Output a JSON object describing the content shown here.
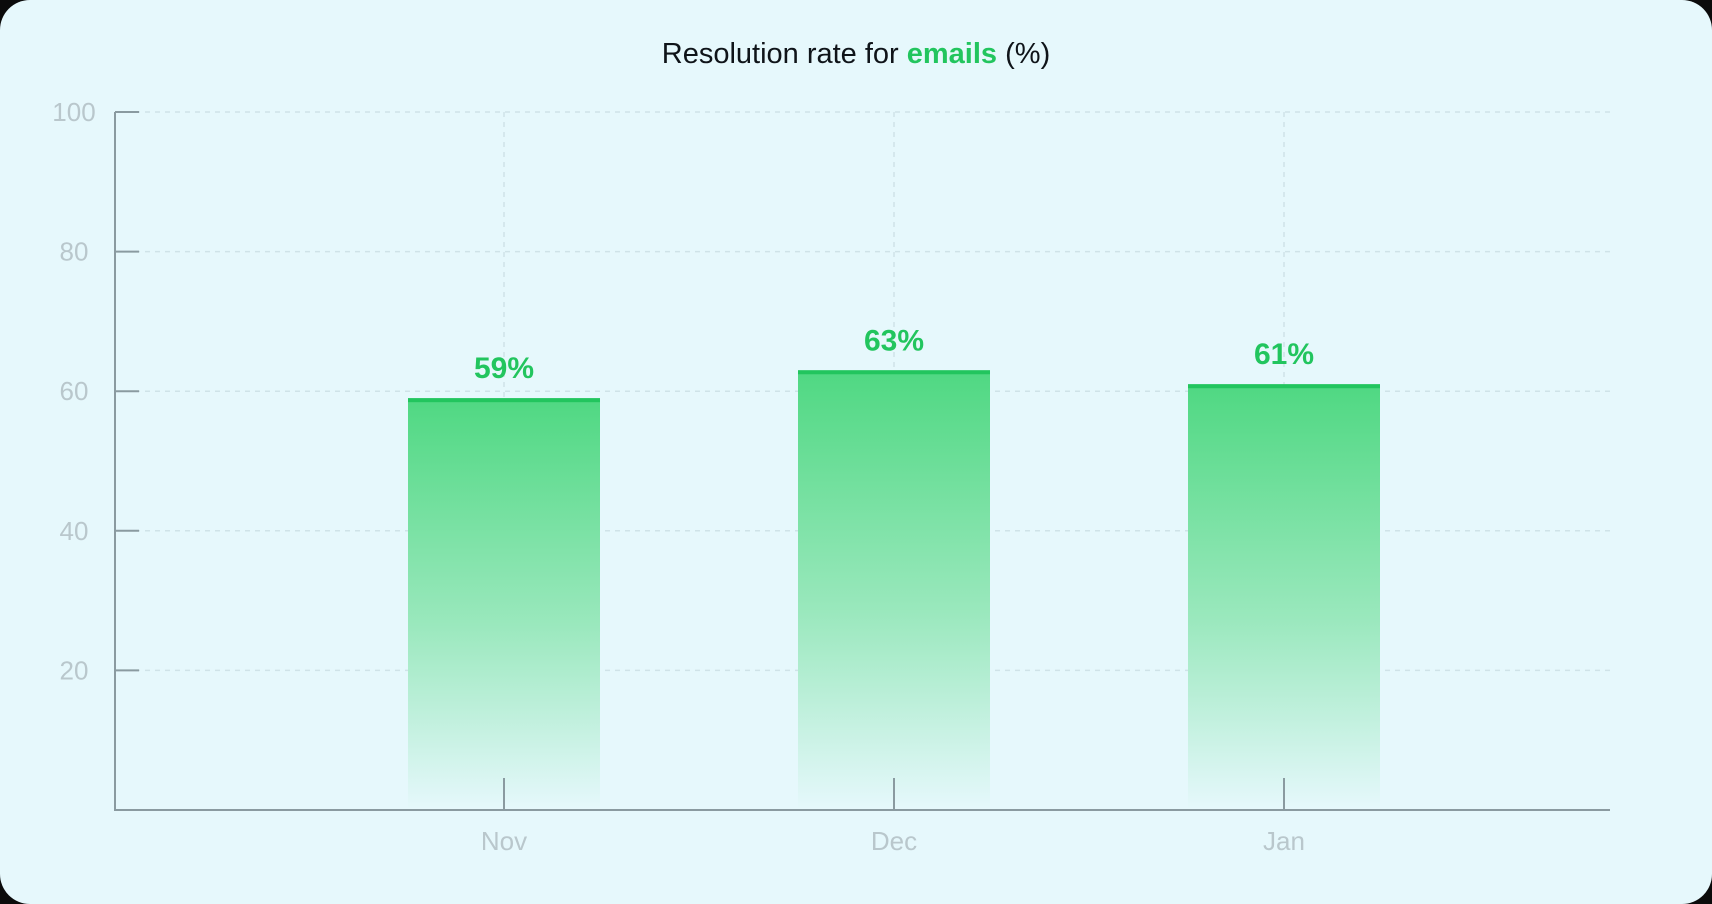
{
  "chart_data": {
    "type": "bar",
    "title": {
      "prefix": "Resolution rate for ",
      "highlight": "emails",
      "suffix": " (%)"
    },
    "categories": [
      "Nov",
      "Dec",
      "Jan"
    ],
    "values": [
      59,
      63,
      61
    ],
    "data_labels": [
      "59%",
      "63%",
      "61%"
    ],
    "ylim": [
      0,
      100
    ],
    "yticks": [
      20,
      40,
      60,
      80,
      100
    ],
    "grid": true,
    "colors": {
      "accent": "#22c55e",
      "bar_top": "#22c55e",
      "axis": "#8a9aa0",
      "grid": "#cfe3e8",
      "tick_text": "#b9c7cc"
    }
  }
}
